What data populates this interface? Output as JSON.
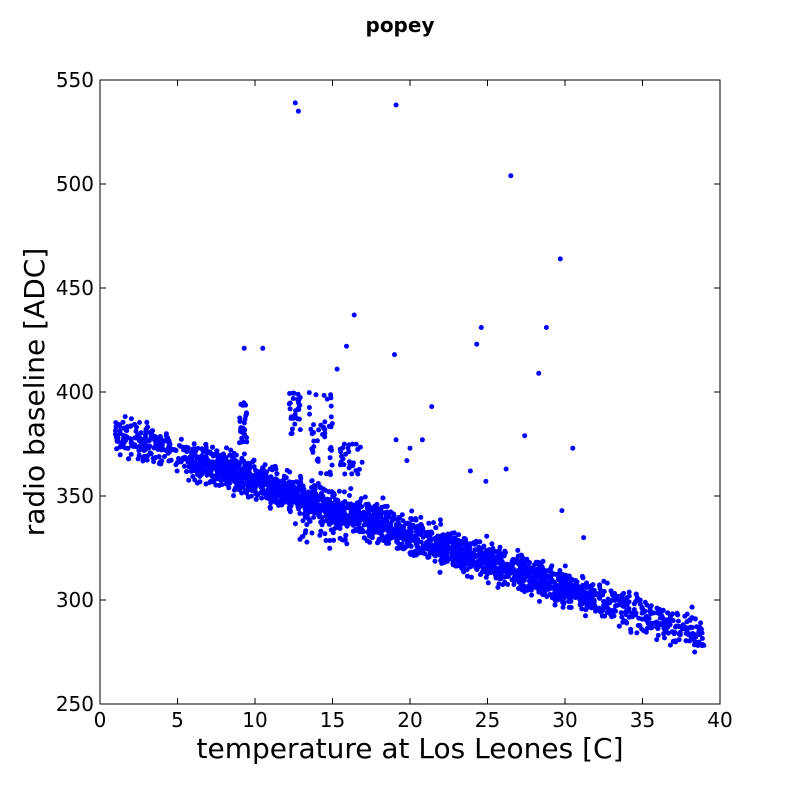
{
  "chart_data": {
    "type": "scatter",
    "title": "popey",
    "xlabel": "temperature at Los Leones [C]",
    "ylabel": "radio baseline [ADC]",
    "xlim": [
      0,
      40
    ],
    "ylim": [
      250,
      550
    ],
    "xticks": [
      "0",
      "5",
      "10",
      "15",
      "20",
      "25",
      "30",
      "35",
      "40"
    ],
    "yticks": [
      "250",
      "300",
      "350",
      "400",
      "450",
      "500",
      "550"
    ],
    "grid": false,
    "legend": "none",
    "marker_color": "#0000ff",
    "band_trend": {
      "description": "dense band of points following baseline ≈ 380 - 2.6*(T - 2)",
      "x_range": [
        1,
        39
      ],
      "start": [
        1,
        380
      ],
      "end": [
        38.5,
        284
      ],
      "spread": 8
    },
    "clusters": [
      {
        "x": [
          9,
          9.5
        ],
        "y": [
          375,
          398
        ],
        "count": 25
      },
      {
        "x": [
          12,
          13
        ],
        "y": [
          380,
          400
        ],
        "count": 30
      },
      {
        "x": [
          13.5,
          15
        ],
        "y": [
          360,
          400
        ],
        "count": 45
      },
      {
        "x": [
          15.5,
          17
        ],
        "y": [
          360,
          375
        ],
        "count": 30
      },
      {
        "x": [
          12.5,
          16
        ],
        "y": [
          324,
          340
        ],
        "count": 30
      }
    ],
    "outliers": [
      {
        "x": 12.6,
        "y": 539
      },
      {
        "x": 12.8,
        "y": 535
      },
      {
        "x": 19.1,
        "y": 538
      },
      {
        "x": 26.5,
        "y": 504
      },
      {
        "x": 29.7,
        "y": 464
      },
      {
        "x": 16.4,
        "y": 437
      },
      {
        "x": 24.6,
        "y": 431
      },
      {
        "x": 28.8,
        "y": 431
      },
      {
        "x": 24.3,
        "y": 423
      },
      {
        "x": 15.9,
        "y": 422
      },
      {
        "x": 9.3,
        "y": 421
      },
      {
        "x": 10.5,
        "y": 421
      },
      {
        "x": 19.0,
        "y": 418
      },
      {
        "x": 15.3,
        "y": 411
      },
      {
        "x": 28.3,
        "y": 409
      },
      {
        "x": 21.4,
        "y": 393
      },
      {
        "x": 27.4,
        "y": 379
      },
      {
        "x": 19.1,
        "y": 377
      },
      {
        "x": 20.8,
        "y": 377
      },
      {
        "x": 30.5,
        "y": 373
      },
      {
        "x": 20.0,
        "y": 373
      },
      {
        "x": 19.8,
        "y": 367
      },
      {
        "x": 26.2,
        "y": 363
      },
      {
        "x": 23.9,
        "y": 362
      },
      {
        "x": 24.9,
        "y": 357
      },
      {
        "x": 29.8,
        "y": 343
      },
      {
        "x": 31.2,
        "y": 330
      }
    ]
  }
}
